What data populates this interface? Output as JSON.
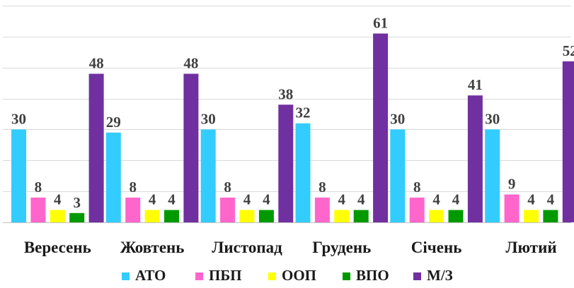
{
  "chart_data": {
    "type": "bar",
    "categories": [
      "Вересень",
      "Жовтень",
      "Листопад",
      "Грудень",
      "Січень",
      "Лютий"
    ],
    "series": [
      {
        "name": "АТО",
        "color": "#33CCFF",
        "values": [
          30,
          29,
          30,
          32,
          30,
          30
        ]
      },
      {
        "name": "ПБП",
        "color": "#FF66CC",
        "values": [
          8,
          8,
          8,
          8,
          8,
          9
        ]
      },
      {
        "name": "ООП",
        "color": "#FFFF00",
        "values": [
          4,
          4,
          4,
          4,
          4,
          4
        ]
      },
      {
        "name": "ВПО",
        "color": "#009900",
        "values": [
          3,
          4,
          4,
          4,
          4,
          4
        ]
      },
      {
        "name": "М/З",
        "color": "#7030A0",
        "values": [
          48,
          48,
          38,
          61,
          41,
          52
        ]
      }
    ],
    "ylim": [
      0,
      70
    ],
    "y_gridlines": [
      0,
      10,
      20,
      30,
      40,
      50,
      60,
      70
    ],
    "grid": true,
    "data_labels": true,
    "legend_position": "bottom",
    "title": "",
    "xlabel": "",
    "ylabel": ""
  }
}
